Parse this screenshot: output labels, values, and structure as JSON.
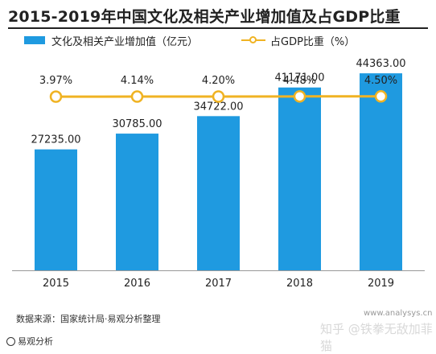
{
  "title": "2015-2019年中国文化及相关产业增加值及占GDP比重",
  "legend": {
    "bar_label": "文化及相关产业增加值（亿元）",
    "line_label": "占GDP比重（%）"
  },
  "colors": {
    "bar": "#1f9ae0",
    "line": "#f0b323",
    "axis": "#999999",
    "text": "#222222"
  },
  "chart_data": {
    "type": "bar",
    "categories": [
      "2015",
      "2016",
      "2017",
      "2018",
      "2019"
    ],
    "series": [
      {
        "name": "文化及相关产业增加值（亿元）",
        "type": "bar",
        "values": [
          27235.0,
          30785.0,
          34722.0,
          41171.0,
          44363.0
        ],
        "labels": [
          "27235.00",
          "30785.00",
          "34722.00",
          "41171.00",
          "44363.00"
        ]
      },
      {
        "name": "占GDP比重（%）",
        "type": "line",
        "values": [
          3.97,
          4.14,
          4.2,
          4.48,
          4.5
        ],
        "labels": [
          "3.97%",
          "4.14%",
          "4.20%",
          "4.48%",
          "4.50%"
        ]
      }
    ],
    "title": "2015-2019年中国文化及相关产业增加值及占GDP比重",
    "xlabel": "",
    "ylabel": "",
    "ylim": [
      0,
      50000
    ],
    "grid": false,
    "legend_position": "top-left"
  },
  "footer": {
    "source": "数据来源：国家统计局·易观分析整理",
    "logo_text": "易观分析"
  },
  "watermark": {
    "url": "www.analysys.cn",
    "text": "知乎 @铁拳无敌加菲猫"
  }
}
